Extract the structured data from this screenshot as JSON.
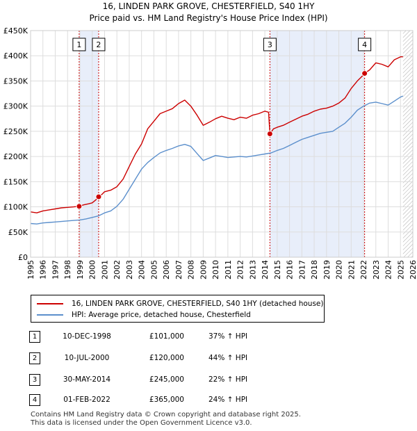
{
  "title_line1": "16, LINDEN PARK GROVE, CHESTERFIELD, S40 1HY",
  "title_line2": "Price paid vs. HM Land Registry's House Price Index (HPI)",
  "legend": {
    "property": "16, LINDEN PARK GROVE, CHESTERFIELD, S40 1HY (detached house)",
    "hpi": "HPI: Average price, detached house, Chesterfield"
  },
  "colors": {
    "property": "#cc0000",
    "hpi": "#5b8fcc",
    "shade": "#e8eefa",
    "grid": "#dddddd"
  },
  "transactions": [
    {
      "num": "1",
      "date": "10-DEC-1998",
      "price": "£101,000",
      "hpi": "37% ↑ HPI"
    },
    {
      "num": "2",
      "date": "10-JUL-2000",
      "price": "£120,000",
      "hpi": "44% ↑ HPI"
    },
    {
      "num": "3",
      "date": "30-MAY-2014",
      "price": "£245,000",
      "hpi": "22% ↑ HPI"
    },
    {
      "num": "4",
      "date": "01-FEB-2022",
      "price": "£365,000",
      "hpi": "24% ↑ HPI"
    }
  ],
  "footer": {
    "line1": "Contains HM Land Registry data © Crown copyright and database right 2025.",
    "line2": "This data is licensed under the Open Government Licence v3.0."
  },
  "chart_data": {
    "type": "line",
    "title": "16, LINDEN PARK GROVE, CHESTERFIELD, S40 1HY — Price paid vs. HM Land Registry's House Price Index (HPI)",
    "xlabel": "",
    "ylabel": "",
    "xlim": [
      1995,
      2026
    ],
    "ylim": [
      0,
      450000
    ],
    "x_ticks": [
      1995,
      1996,
      1997,
      1998,
      1999,
      2000,
      2001,
      2002,
      2003,
      2004,
      2005,
      2006,
      2007,
      2008,
      2009,
      2010,
      2011,
      2012,
      2013,
      2014,
      2015,
      2016,
      2017,
      2018,
      2019,
      2020,
      2021,
      2022,
      2023,
      2024,
      2025,
      2026
    ],
    "y_ticks": [
      {
        "value": 0,
        "label": "£0"
      },
      {
        "value": 50000,
        "label": "£50K"
      },
      {
        "value": 100000,
        "label": "£100K"
      },
      {
        "value": 150000,
        "label": "£150K"
      },
      {
        "value": 200000,
        "label": "£200K"
      },
      {
        "value": 250000,
        "label": "£250K"
      },
      {
        "value": 300000,
        "label": "£300K"
      },
      {
        "value": 350000,
        "label": "£350K"
      },
      {
        "value": 400000,
        "label": "£400K"
      },
      {
        "value": 450000,
        "label": "£450K"
      }
    ],
    "grid": true,
    "shaded_ranges": [
      [
        1998.94,
        2000.52
      ],
      [
        2014.41,
        2022.09
      ]
    ],
    "hatched_from": 2025.2,
    "series": [
      {
        "name": "16, LINDEN PARK GROVE, CHESTERFIELD, S40 1HY (detached house)",
        "color": "#cc0000",
        "x": [
          1995.0,
          1995.5,
          1996.0,
          1996.5,
          1997.0,
          1997.5,
          1998.0,
          1998.5,
          1998.94,
          1999.3,
          1999.7,
          2000.0,
          2000.3,
          2000.52,
          2000.8,
          2001.0,
          2001.5,
          2002.0,
          2002.5,
          2003.0,
          2003.5,
          2004.0,
          2004.5,
          2005.0,
          2005.5,
          2006.0,
          2006.5,
          2007.0,
          2007.5,
          2008.0,
          2008.5,
          2009.0,
          2009.5,
          2010.0,
          2010.5,
          2011.0,
          2011.5,
          2012.0,
          2012.5,
          2013.0,
          2013.5,
          2014.0,
          2014.3,
          2014.41,
          2014.7,
          2015.0,
          2015.5,
          2016.0,
          2016.5,
          2017.0,
          2017.5,
          2018.0,
          2018.5,
          2019.0,
          2019.5,
          2020.0,
          2020.5,
          2021.0,
          2021.5,
          2022.0,
          2022.09,
          2022.5,
          2023.0,
          2023.5,
          2024.0,
          2024.5,
          2025.0,
          2025.2
        ],
        "y": [
          90000,
          88000,
          92000,
          94000,
          96000,
          98000,
          99000,
          100000,
          101000,
          104000,
          106000,
          108000,
          114000,
          120000,
          125000,
          130000,
          133000,
          140000,
          155000,
          180000,
          205000,
          225000,
          255000,
          270000,
          285000,
          290000,
          295000,
          305000,
          312000,
          300000,
          282000,
          262000,
          268000,
          275000,
          280000,
          276000,
          273000,
          278000,
          276000,
          282000,
          285000,
          290000,
          288000,
          245000,
          255000,
          258000,
          262000,
          268000,
          274000,
          280000,
          284000,
          290000,
          294000,
          296000,
          300000,
          306000,
          316000,
          335000,
          350000,
          362000,
          365000,
          372000,
          386000,
          383000,
          378000,
          392000,
          398000,
          398000
        ]
      },
      {
        "name": "HPI: Average price, detached house, Chesterfield",
        "color": "#5b8fcc",
        "x": [
          1995.0,
          1995.5,
          1996.0,
          1996.5,
          1997.0,
          1997.5,
          1998.0,
          1998.5,
          1999.0,
          1999.5,
          2000.0,
          2000.5,
          2001.0,
          2001.5,
          2002.0,
          2002.5,
          2003.0,
          2003.5,
          2004.0,
          2004.5,
          2005.0,
          2005.5,
          2006.0,
          2006.5,
          2007.0,
          2007.5,
          2008.0,
          2008.5,
          2009.0,
          2009.5,
          2010.0,
          2010.5,
          2011.0,
          2011.5,
          2012.0,
          2012.5,
          2013.0,
          2013.5,
          2014.0,
          2014.5,
          2015.0,
          2015.5,
          2016.0,
          2016.5,
          2017.0,
          2017.5,
          2018.0,
          2018.5,
          2019.0,
          2019.5,
          2020.0,
          2020.5,
          2021.0,
          2021.5,
          2022.0,
          2022.5,
          2023.0,
          2023.5,
          2024.0,
          2024.5,
          2025.0,
          2025.2
        ],
        "y": [
          67000,
          66000,
          68000,
          69000,
          70000,
          71000,
          72000,
          73000,
          74000,
          76000,
          79000,
          82000,
          88000,
          92000,
          101000,
          115000,
          135000,
          155000,
          175000,
          188000,
          198000,
          207000,
          212000,
          216000,
          221000,
          224000,
          220000,
          206000,
          192000,
          197000,
          202000,
          200000,
          198000,
          199000,
          200000,
          199000,
          201000,
          203000,
          205000,
          207000,
          212000,
          216000,
          222000,
          228000,
          234000,
          238000,
          242000,
          246000,
          248000,
          250000,
          258000,
          266000,
          278000,
          292000,
          300000,
          306000,
          308000,
          305000,
          302000,
          310000,
          318000,
          320000
        ]
      }
    ],
    "markers": [
      {
        "label": "1",
        "x": 1998.94,
        "y": 101000
      },
      {
        "label": "2",
        "x": 2000.52,
        "y": 120000
      },
      {
        "label": "3",
        "x": 2014.41,
        "y": 245000
      },
      {
        "label": "4",
        "x": 2022.09,
        "y": 365000
      }
    ]
  }
}
